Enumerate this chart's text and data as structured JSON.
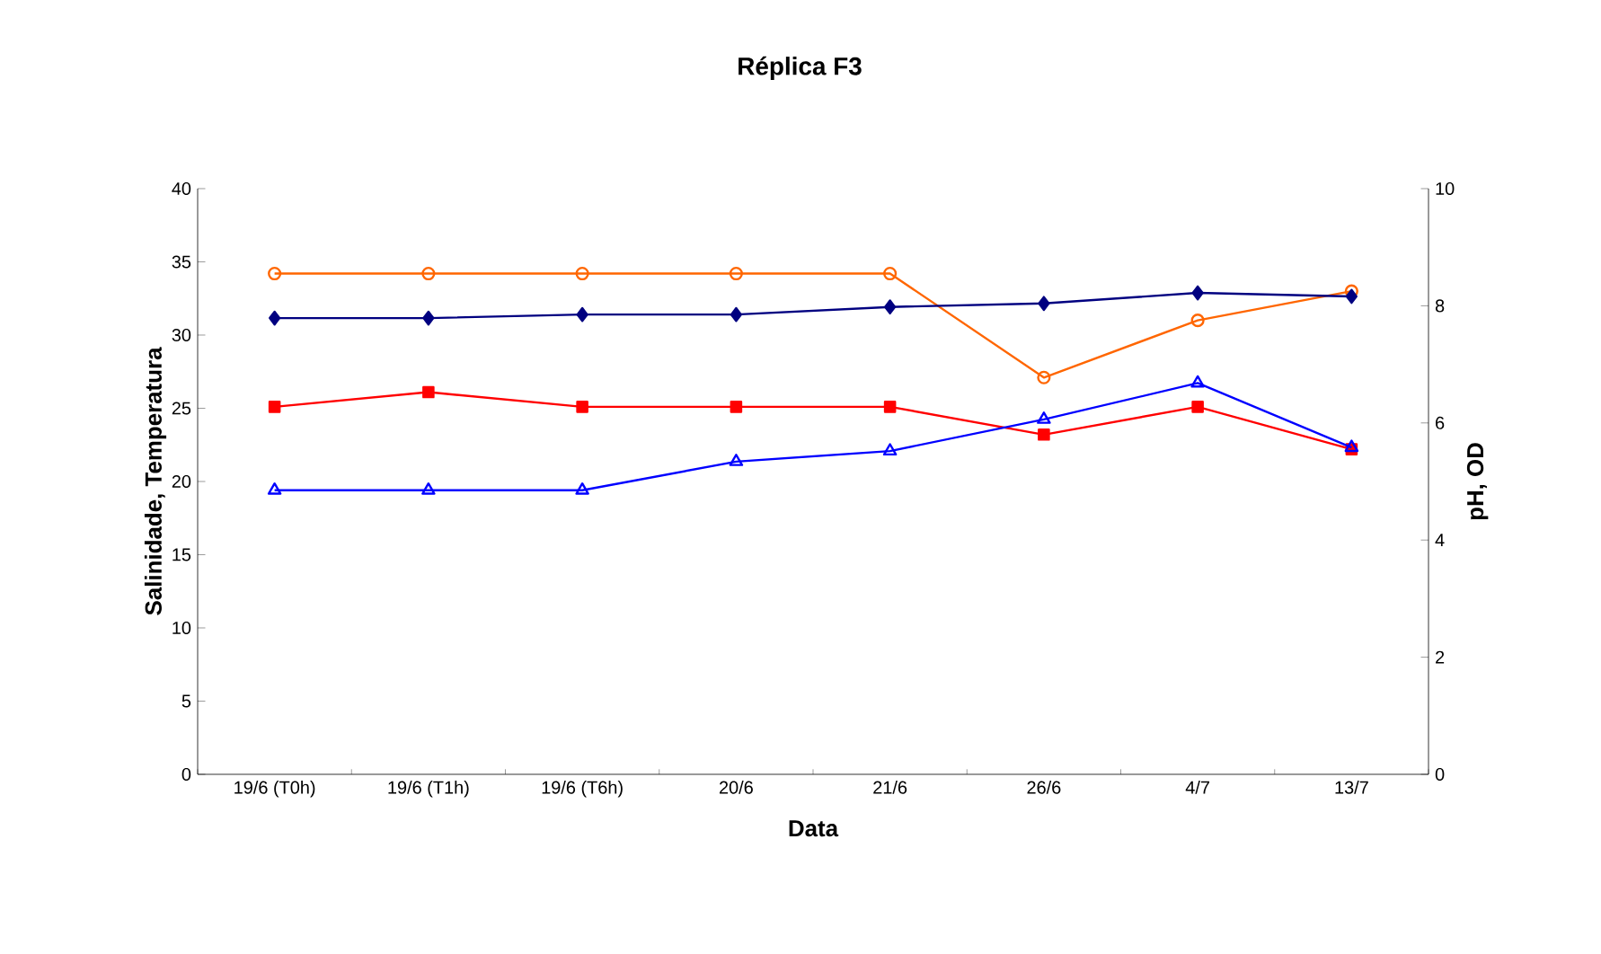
{
  "chart_data": {
    "type": "line",
    "title": "Réplica F3",
    "xlabel": "Data",
    "ylabel": "Salinidade, Temperatura",
    "y2label": "pH, OD",
    "categories": [
      "19/6 (T0h)",
      "19/6 (T1h)",
      "19/6 (T6h)",
      "20/6",
      "21/6",
      "26/6",
      "4/7",
      "13/7"
    ],
    "series": [
      {
        "color": "#ff6600",
        "marker": "circle",
        "values": [
          34.2,
          34.2,
          34.2,
          34.2,
          34.2,
          27.1,
          31.0,
          33.0
        ]
      },
      {
        "color": "#ff0000",
        "marker": "square",
        "values": [
          25.1,
          26.1,
          25.1,
          25.1,
          25.1,
          23.2,
          25.1,
          22.2
        ]
      },
      {
        "color": "#000080",
        "marker": "diamond",
        "axis": "y2",
        "values": [
          7.79,
          7.79,
          7.85,
          7.85,
          7.98,
          8.04,
          8.22,
          8.16
        ]
      },
      {
        "color": "#0000ff",
        "marker": "triangle",
        "axis": "y2",
        "values": [
          4.85,
          4.85,
          4.85,
          5.34,
          5.52,
          6.06,
          6.68,
          5.58
        ]
      }
    ],
    "ylim": [
      0,
      40
    ],
    "yticks": [
      0,
      5,
      10,
      15,
      20,
      25,
      30,
      35,
      40
    ],
    "y2lim": [
      0,
      10
    ],
    "y2ticks": [
      0,
      2,
      4,
      6,
      8,
      10
    ],
    "line_style": "solid"
  }
}
